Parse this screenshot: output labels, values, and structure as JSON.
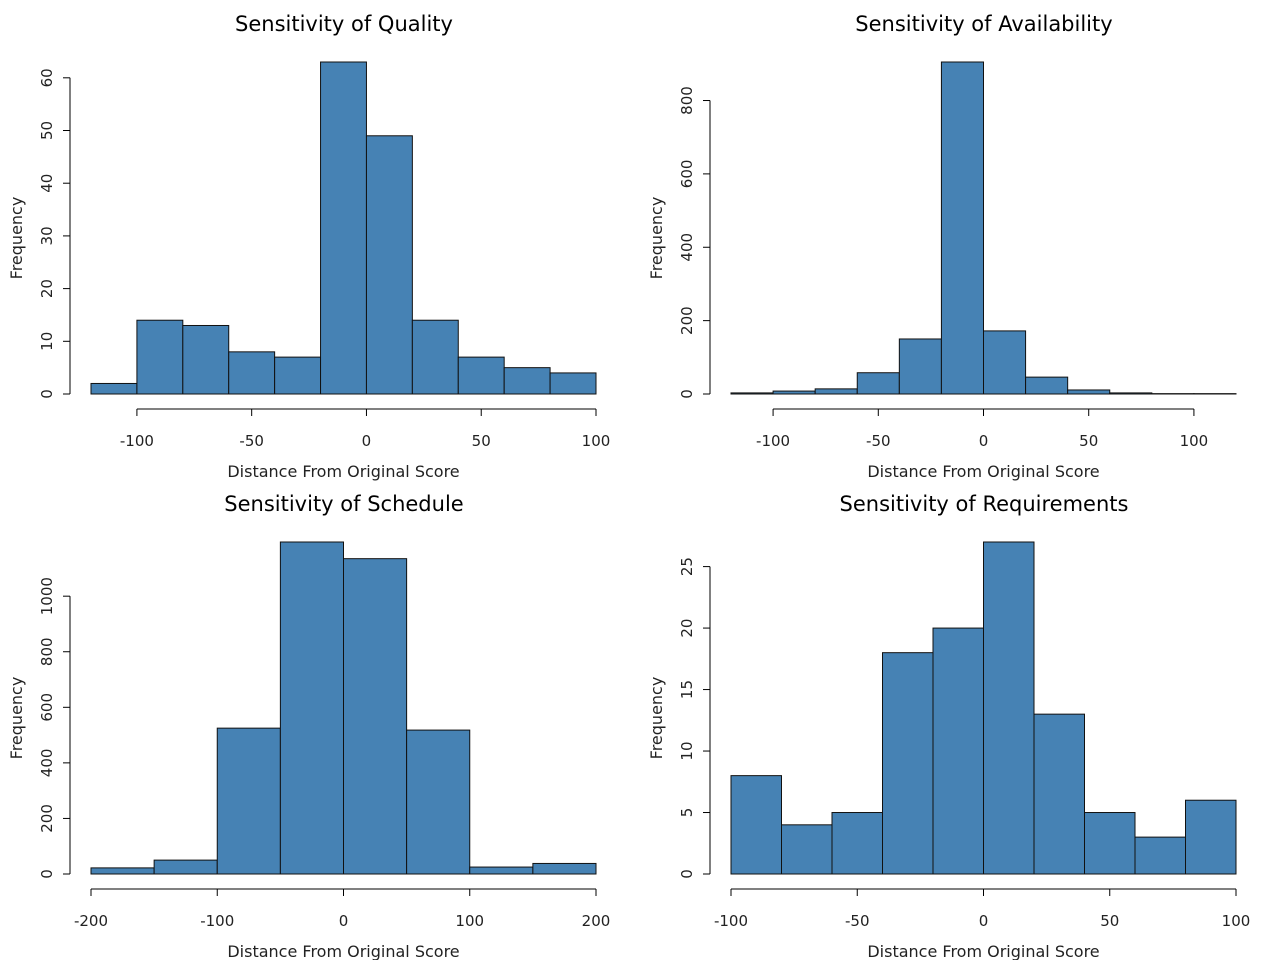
{
  "colors": {
    "bar_fill": "#4682b4",
    "bar_stroke": "#111111",
    "axis": "#000000",
    "background": "#ffffff"
  },
  "chart_data": [
    {
      "type": "bar",
      "title": "Sensitivity of Quality",
      "xlabel": "Distance From Original Score",
      "ylabel": "Frequency",
      "bin_edges": [
        -120,
        -100,
        -80,
        -60,
        -40,
        -20,
        0,
        20,
        40,
        60,
        80,
        100
      ],
      "values": [
        2,
        14,
        13,
        8,
        7,
        63,
        49,
        14,
        7,
        5,
        4
      ],
      "xticks": [
        -100,
        -50,
        0,
        50,
        100
      ],
      "xtick_labels": [
        "-100",
        "-50",
        "0",
        "50",
        "100"
      ],
      "xlim": [
        -120,
        100
      ],
      "yticks": [
        0,
        10,
        20,
        30,
        40,
        50,
        60
      ],
      "ytick_labels": [
        "0",
        "10",
        "20",
        "30",
        "40",
        "50",
        "60"
      ],
      "ylim": [
        0,
        63
      ],
      "grid": false
    },
    {
      "type": "bar",
      "title": "Sensitivity of Availability",
      "xlabel": "Distance From Original Score",
      "ylabel": "Frequency",
      "bin_edges": [
        -120,
        -100,
        -80,
        -60,
        -40,
        -20,
        0,
        20,
        40,
        60,
        80,
        100,
        120
      ],
      "values": [
        3,
        8,
        14,
        58,
        150,
        905,
        172,
        46,
        11,
        3,
        1,
        1
      ],
      "xticks": [
        -100,
        -50,
        0,
        50,
        100
      ],
      "xtick_labels": [
        "-100",
        "-50",
        "0",
        "50",
        "100"
      ],
      "xlim": [
        -120,
        120
      ],
      "yticks": [
        0,
        200,
        400,
        600,
        800
      ],
      "ytick_labels": [
        "0",
        "200",
        "400",
        "600",
        "800"
      ],
      "ylim": [
        0,
        905
      ],
      "grid": false
    },
    {
      "type": "bar",
      "title": "Sensitivity of Schedule",
      "xlabel": "Distance From Original Score",
      "ylabel": "Frequency",
      "bin_edges": [
        -200,
        -150,
        -100,
        -50,
        0,
        50,
        100,
        150,
        200
      ],
      "values": [
        22,
        50,
        525,
        1195,
        1135,
        518,
        25,
        38
      ],
      "xticks": [
        -200,
        -100,
        0,
        100,
        200
      ],
      "xtick_labels": [
        "-200",
        "-100",
        "0",
        "100",
        "200"
      ],
      "xlim": [
        -200,
        200
      ],
      "yticks": [
        0,
        200,
        400,
        600,
        800,
        1000
      ],
      "ytick_labels": [
        "0",
        "200",
        "400",
        "600",
        "800",
        "1000"
      ],
      "ylim": [
        0,
        1195
      ],
      "grid": false
    },
    {
      "type": "bar",
      "title": "Sensitivity of Requirements",
      "xlabel": "Distance From Original Score",
      "ylabel": "Frequency",
      "bin_edges": [
        -100,
        -80,
        -60,
        -40,
        -20,
        0,
        20,
        40,
        60,
        80,
        100
      ],
      "values": [
        8,
        4,
        5,
        18,
        20,
        27,
        13,
        5,
        3,
        6
      ],
      "xticks": [
        -100,
        -50,
        0,
        50,
        100
      ],
      "xtick_labels": [
        "-100",
        "-50",
        "0",
        "50",
        "100"
      ],
      "xlim": [
        -100,
        100
      ],
      "yticks": [
        0,
        5,
        10,
        15,
        20,
        25
      ],
      "ytick_labels": [
        "0",
        "5",
        "10",
        "15",
        "20",
        "25"
      ],
      "ylim": [
        0,
        27
      ],
      "grid": false
    }
  ]
}
